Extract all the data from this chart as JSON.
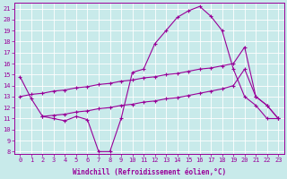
{
  "xlabel": "Windchill (Refroidissement éolien,°C)",
  "bg_color": "#c8eaea",
  "line_color": "#990099",
  "xticks": [
    0,
    1,
    2,
    3,
    4,
    5,
    6,
    7,
    8,
    9,
    10,
    11,
    12,
    13,
    14,
    15,
    16,
    17,
    18,
    19,
    20,
    21,
    22,
    23
  ],
  "yticks": [
    8,
    9,
    10,
    11,
    12,
    13,
    14,
    15,
    16,
    17,
    18,
    19,
    20,
    21
  ],
  "xlim": [
    -0.5,
    23.5
  ],
  "ylim": [
    7.8,
    21.5
  ],
  "main_x": [
    0,
    1,
    2,
    3,
    4,
    5,
    6,
    7,
    8,
    9,
    10,
    11,
    12,
    13,
    14,
    15,
    16,
    17,
    18,
    19,
    20,
    21,
    22,
    23
  ],
  "main_y": [
    14.8,
    12.8,
    11.2,
    11.0,
    10.8,
    11.2,
    10.9,
    8.0,
    8.0,
    11.0,
    15.2,
    15.5,
    17.8,
    19.0,
    20.2,
    20.8,
    21.2,
    20.3,
    19.0,
    15.5,
    13.0,
    12.2,
    11.0,
    11.0
  ],
  "upper_x": [
    0,
    1,
    2,
    3,
    4,
    5,
    6,
    7,
    8,
    9,
    10,
    11,
    12,
    13,
    14,
    15,
    16,
    17,
    18,
    19,
    20,
    21,
    22,
    23
  ],
  "upper_y": [
    13.0,
    13.2,
    13.3,
    13.5,
    13.6,
    13.8,
    13.9,
    14.1,
    14.2,
    14.4,
    14.5,
    14.7,
    14.8,
    15.0,
    15.1,
    15.3,
    15.5,
    15.6,
    15.8,
    16.0,
    17.5,
    13.0,
    12.2,
    11.0
  ],
  "lower_x": [
    2,
    3,
    4,
    5,
    6,
    7,
    8,
    9,
    10,
    11,
    12,
    13,
    14,
    15,
    16,
    17,
    18,
    19,
    20,
    21,
    22,
    23
  ],
  "lower_y": [
    11.2,
    11.3,
    11.4,
    11.6,
    11.7,
    11.9,
    12.0,
    12.2,
    12.3,
    12.5,
    12.6,
    12.8,
    12.9,
    13.1,
    13.3,
    13.5,
    13.7,
    14.0,
    15.5,
    13.0,
    12.2,
    11.0
  ]
}
